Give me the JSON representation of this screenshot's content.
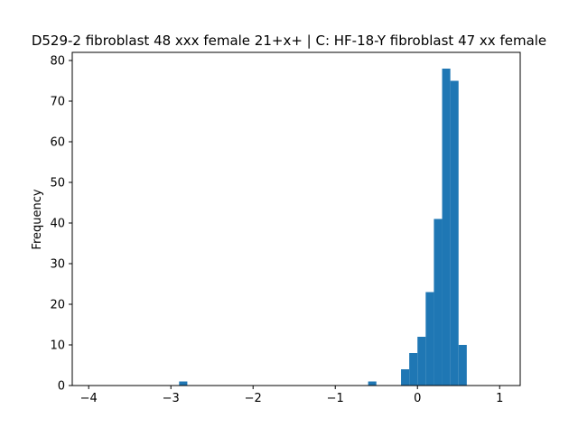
{
  "chart_data": {
    "type": "bar",
    "title": "D529-2 fibroblast 48 xxx female 21+x+ | C: HF-18-Y fibroblast 47 xx female",
    "xlabel": "",
    "ylabel": "Frequency",
    "xlim": [
      -4.2,
      1.25
    ],
    "ylim": [
      0,
      82
    ],
    "xticks": [
      -4,
      -3,
      -2,
      -1,
      0,
      1
    ],
    "xtick_labels": [
      "−4",
      "−3",
      "−2",
      "−1",
      "0",
      "1"
    ],
    "yticks": [
      0,
      10,
      20,
      30,
      40,
      50,
      60,
      70,
      80
    ],
    "ytick_labels": [
      "0",
      "10",
      "20",
      "30",
      "40",
      "50",
      "60",
      "70",
      "80"
    ],
    "grid": false,
    "legend": "none",
    "bar_color": "#1f77b4",
    "bins": [
      {
        "x0": -2.9,
        "x1": -2.8,
        "value": 1
      },
      {
        "x0": -0.6,
        "x1": -0.5,
        "value": 1
      },
      {
        "x0": -0.2,
        "x1": -0.1,
        "value": 4
      },
      {
        "x0": -0.1,
        "x1": 0.0,
        "value": 8
      },
      {
        "x0": 0.0,
        "x1": 0.1,
        "value": 12
      },
      {
        "x0": 0.1,
        "x1": 0.2,
        "value": 23
      },
      {
        "x0": 0.2,
        "x1": 0.3,
        "value": 41
      },
      {
        "x0": 0.3,
        "x1": 0.4,
        "value": 78
      },
      {
        "x0": 0.4,
        "x1": 0.5,
        "value": 75
      },
      {
        "x0": 0.5,
        "x1": 0.6,
        "value": 10
      }
    ]
  }
}
